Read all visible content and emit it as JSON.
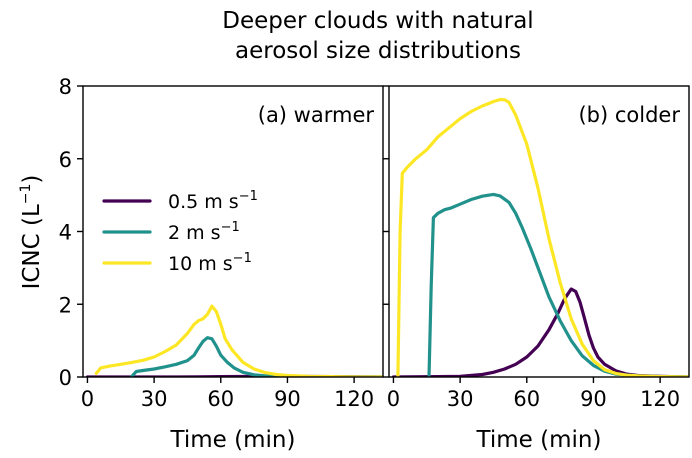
{
  "figure": {
    "title_line1": "Deeper clouds with natural",
    "title_line2": "aerosol size distributions",
    "ylabel": "ICNC (L",
    "ylabel_sup": "−1",
    "ylabel_end": ")"
  },
  "legend": [
    {
      "label": "0.5 m s",
      "sup": "−1",
      "color": "#440154"
    },
    {
      "label": "2 m s",
      "sup": "−1",
      "color": "#21918c"
    },
    {
      "label": "10 m s",
      "sup": "−1",
      "color": "#fde725"
    }
  ],
  "chart_data": [
    {
      "type": "line",
      "panel_label": "(a) warmer",
      "xlabel": "Time (min)",
      "ylabel": "ICNC (L−1)",
      "xlim": [
        -2,
        133
      ],
      "ylim": [
        0,
        8
      ],
      "xticks": [
        0,
        30,
        60,
        90,
        120
      ],
      "yticks": [
        0,
        2,
        4,
        6,
        8
      ],
      "legend_position": "center-left",
      "series": [
        {
          "name": "0.5 m s−1",
          "color": "#440154",
          "x": [
            0,
            40,
            50,
            60,
            70,
            80,
            90,
            100,
            110,
            120,
            133
          ],
          "y": [
            0,
            0,
            0.005,
            0.01,
            0.015,
            0.02,
            0.02,
            0.015,
            0.01,
            0.005,
            0
          ]
        },
        {
          "name": "2 m s−1",
          "color": "#21918c",
          "x": [
            20,
            22,
            25,
            30,
            35,
            40,
            45,
            48,
            50,
            52,
            54,
            56,
            58,
            60,
            63,
            66,
            70,
            75,
            80,
            85,
            90,
            100,
            110,
            120,
            133
          ],
          "y": [
            0.02,
            0.15,
            0.18,
            0.22,
            0.28,
            0.35,
            0.45,
            0.6,
            0.8,
            0.98,
            1.08,
            1.05,
            0.85,
            0.6,
            0.4,
            0.25,
            0.13,
            0.06,
            0.03,
            0.015,
            0.01,
            0,
            0,
            0,
            0
          ]
        },
        {
          "name": "10 m s−1",
          "color": "#fde725",
          "x": [
            4,
            6,
            10,
            15,
            20,
            25,
            30,
            35,
            40,
            45,
            48,
            50,
            52,
            54,
            56,
            58,
            60,
            62,
            65,
            70,
            75,
            80,
            85,
            90,
            100,
            110,
            120,
            133
          ],
          "y": [
            0.1,
            0.25,
            0.3,
            0.35,
            0.4,
            0.46,
            0.55,
            0.7,
            0.88,
            1.2,
            1.45,
            1.55,
            1.6,
            1.72,
            1.95,
            1.8,
            1.45,
            1.05,
            0.75,
            0.4,
            0.22,
            0.12,
            0.07,
            0.04,
            0.02,
            0.01,
            0,
            0
          ]
        }
      ]
    },
    {
      "type": "line",
      "panel_label": "(b) colder",
      "xlabel": "Time (min)",
      "xlim": [
        -2,
        133
      ],
      "ylim": [
        0,
        8
      ],
      "xticks": [
        0,
        30,
        60,
        90,
        120
      ],
      "yticks": [
        0,
        2,
        4,
        6,
        8
      ],
      "series": [
        {
          "name": "0.5 m s−1",
          "color": "#440154",
          "x": [
            0,
            20,
            30,
            40,
            45,
            50,
            55,
            60,
            65,
            70,
            74,
            77,
            80,
            82,
            84,
            86,
            88,
            90,
            92,
            95,
            100,
            105,
            110,
            120,
            133
          ],
          "y": [
            0,
            0.01,
            0.02,
            0.07,
            0.13,
            0.22,
            0.35,
            0.55,
            0.85,
            1.3,
            1.75,
            2.15,
            2.42,
            2.35,
            2.05,
            1.6,
            1.15,
            0.8,
            0.55,
            0.35,
            0.17,
            0.08,
            0.04,
            0.02,
            0
          ]
        },
        {
          "name": "2 m s−1",
          "color": "#21918c",
          "x": [
            16,
            17,
            18,
            20,
            23,
            26,
            30,
            35,
            40,
            45,
            48,
            52,
            55,
            58,
            62,
            66,
            70,
            75,
            80,
            85,
            90,
            95,
            100,
            110,
            120,
            133
          ],
          "y": [
            0,
            2.5,
            4.38,
            4.5,
            4.6,
            4.65,
            4.75,
            4.88,
            4.97,
            5.02,
            4.98,
            4.8,
            4.5,
            4.1,
            3.5,
            2.85,
            2.2,
            1.55,
            1.0,
            0.58,
            0.32,
            0.16,
            0.08,
            0.03,
            0.01,
            0
          ]
        },
        {
          "name": "10 m s−1",
          "color": "#fde725",
          "x": [
            2,
            3,
            4,
            6,
            10,
            15,
            20,
            25,
            30,
            35,
            40,
            45,
            48,
            50,
            52,
            55,
            60,
            65,
            70,
            75,
            80,
            85,
            90,
            95,
            100,
            105,
            110,
            120,
            133
          ],
          "y": [
            0,
            4.0,
            5.6,
            5.75,
            6.0,
            6.25,
            6.6,
            6.85,
            7.1,
            7.3,
            7.45,
            7.57,
            7.63,
            7.62,
            7.55,
            7.2,
            6.4,
            5.2,
            3.8,
            2.6,
            1.6,
            0.9,
            0.45,
            0.2,
            0.1,
            0.05,
            0.03,
            0.01,
            0
          ]
        }
      ]
    }
  ]
}
